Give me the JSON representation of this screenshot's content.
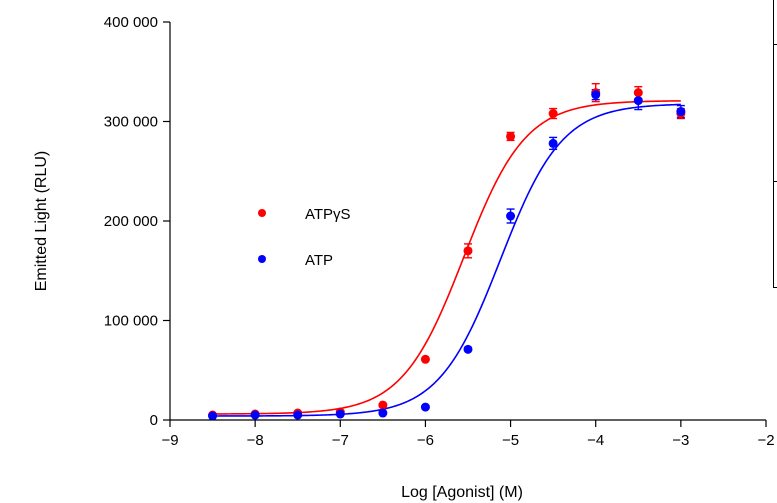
{
  "chart_data": {
    "type": "scatter",
    "xlabel": "Log [Agonist] (M)",
    "ylabel": "Emitted Light (RLU)",
    "xlim": [
      -9,
      -2
    ],
    "ylim": [
      0,
      400000
    ],
    "x_ticks": [
      -9,
      -8,
      -7,
      -6,
      -5,
      -4,
      -3,
      -2
    ],
    "x_tick_labels": [
      "-9",
      "-8",
      "-7",
      "-6",
      "-5",
      "-4",
      "-3",
      "-2"
    ],
    "y_ticks": [
      0,
      100000,
      200000,
      300000,
      400000
    ],
    "y_tick_labels": [
      "0",
      "100 000",
      "200 000",
      "300 000",
      "400 000"
    ],
    "grid": false,
    "legend_position": "center-left",
    "series": [
      {
        "name": "ATPγS",
        "color": "#ff0000",
        "fit": {
          "model": "sigmoidal dose-response",
          "bottom": 6000,
          "top": 321000,
          "logEC50": -5.55,
          "hill": 1.2
        },
        "points": [
          {
            "x": -8.5,
            "y": 5000,
            "err": 0
          },
          {
            "x": -8.0,
            "y": 6000,
            "err": 0
          },
          {
            "x": -7.5,
            "y": 7000,
            "err": 0
          },
          {
            "x": -7.0,
            "y": 8000,
            "err": 0
          },
          {
            "x": -6.5,
            "y": 15000,
            "err": 0
          },
          {
            "x": -6.0,
            "y": 61000,
            "err": 0
          },
          {
            "x": -5.5,
            "y": 170000,
            "err": 7000
          },
          {
            "x": -5.0,
            "y": 285000,
            "err": 4000
          },
          {
            "x": -4.5,
            "y": 308000,
            "err": 5000
          },
          {
            "x": -4.0,
            "y": 329000,
            "err": 9000
          },
          {
            "x": -3.5,
            "y": 329000,
            "err": 6000
          },
          {
            "x": -3.0,
            "y": 308000,
            "err": 5000
          }
        ]
      },
      {
        "name": "ATP",
        "color": "#0000ff",
        "fit": {
          "model": "sigmoidal dose-response",
          "bottom": 4000,
          "top": 318000,
          "logEC50": -5.12,
          "hill": 1.2
        },
        "points": [
          {
            "x": -8.5,
            "y": 4000,
            "err": 0
          },
          {
            "x": -8.0,
            "y": 5000,
            "err": 0
          },
          {
            "x": -7.5,
            "y": 5000,
            "err": 0
          },
          {
            "x": -7.0,
            "y": 6000,
            "err": 0
          },
          {
            "x": -6.5,
            "y": 7000,
            "err": 0
          },
          {
            "x": -6.0,
            "y": 13000,
            "err": 0
          },
          {
            "x": -5.5,
            "y": 71000,
            "err": 0
          },
          {
            "x": -5.0,
            "y": 205000,
            "err": 7000
          },
          {
            "x": -4.5,
            "y": 278000,
            "err": 6000
          },
          {
            "x": -4.0,
            "y": 327000,
            "err": 5000
          },
          {
            "x": -3.5,
            "y": 321000,
            "err": 9000
          },
          {
            "x": -3.0,
            "y": 310000,
            "err": 6000
          }
        ]
      }
    ]
  }
}
